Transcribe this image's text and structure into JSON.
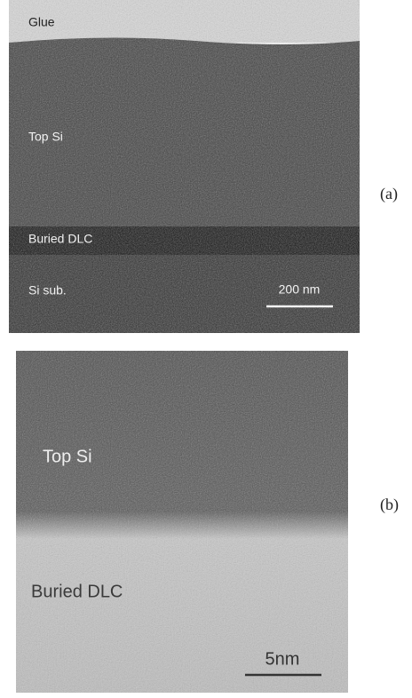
{
  "panels": [
    {
      "label": "(a)",
      "layers": [
        "Glue",
        "Top Si",
        "Buried DLC",
        "Si sub."
      ],
      "scale_bar": "200 nm"
    },
    {
      "label": "(b)",
      "layers": [
        "Top Si",
        "Buried DLC"
      ],
      "scale_bar": "5nm"
    }
  ]
}
